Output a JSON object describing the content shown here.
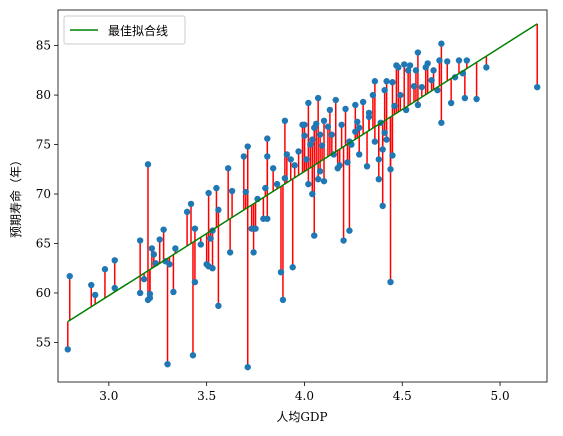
{
  "chart_data": {
    "type": "scatter",
    "xlabel": "人均GDP",
    "ylabel": "预期寿命（年）",
    "xlim": [
      2.74,
      5.24
    ],
    "ylim": [
      51.0,
      88.6
    ],
    "xticks": [
      "3.0",
      "3.5",
      "4.0",
      "4.5",
      "5.0"
    ],
    "xtick_values": [
      3.0,
      3.5,
      4.0,
      4.5,
      5.0
    ],
    "yticks": [
      "55",
      "60",
      "65",
      "70",
      "75",
      "80",
      "85"
    ],
    "ytick_values": [
      55,
      60,
      65,
      70,
      75,
      80,
      85
    ],
    "grid": false,
    "legend": {
      "position": "top-left",
      "entries": [
        "最佳拟合线"
      ]
    },
    "colors": {
      "points": "#1f77b4",
      "residuals": "#ff0000",
      "fit_line": "#008000"
    },
    "fit_line": {
      "x": [
        2.79,
        5.19
      ],
      "y": [
        57.1,
        87.2
      ]
    },
    "points": [
      [
        2.79,
        54.3
      ],
      [
        2.8,
        61.7
      ],
      [
        2.91,
        60.8
      ],
      [
        2.93,
        59.8
      ],
      [
        2.98,
        62.4
      ],
      [
        3.03,
        60.5
      ],
      [
        3.03,
        63.3
      ],
      [
        3.16,
        65.3
      ],
      [
        3.16,
        60.0
      ],
      [
        3.18,
        61.4
      ],
      [
        3.2,
        73.0
      ],
      [
        3.2,
        59.3
      ],
      [
        3.21,
        59.5
      ],
      [
        3.21,
        59.9
      ],
      [
        3.22,
        64.5
      ],
      [
        3.23,
        63.9
      ],
      [
        3.24,
        63.0
      ],
      [
        3.26,
        65.4
      ],
      [
        3.28,
        66.4
      ],
      [
        3.29,
        63.2
      ],
      [
        3.3,
        52.8
      ],
      [
        3.31,
        62.9
      ],
      [
        3.33,
        60.1
      ],
      [
        3.34,
        64.5
      ],
      [
        3.4,
        68.2
      ],
      [
        3.42,
        69.0
      ],
      [
        3.43,
        53.7
      ],
      [
        3.44,
        66.5
      ],
      [
        3.44,
        61.1
      ],
      [
        3.47,
        64.9
      ],
      [
        3.5,
        62.9
      ],
      [
        3.51,
        70.1
      ],
      [
        3.51,
        62.7
      ],
      [
        3.52,
        65.5
      ],
      [
        3.53,
        66.3
      ],
      [
        3.53,
        62.5
      ],
      [
        3.55,
        70.6
      ],
      [
        3.56,
        58.7
      ],
      [
        3.56,
        68.4
      ],
      [
        3.61,
        72.6
      ],
      [
        3.62,
        64.1
      ],
      [
        3.63,
        70.3
      ],
      [
        3.69,
        73.8
      ],
      [
        3.7,
        70.2
      ],
      [
        3.71,
        74.8
      ],
      [
        3.71,
        52.5
      ],
      [
        3.73,
        66.5
      ],
      [
        3.74,
        64.1
      ],
      [
        3.75,
        66.5
      ],
      [
        3.76,
        69.5
      ],
      [
        3.79,
        67.5
      ],
      [
        3.8,
        70.6
      ],
      [
        3.81,
        67.5
      ],
      [
        3.81,
        75.6
      ],
      [
        3.81,
        73.8
      ],
      [
        3.84,
        72.6
      ],
      [
        3.86,
        71.0
      ],
      [
        3.88,
        62.1
      ],
      [
        3.89,
        59.3
      ],
      [
        3.9,
        71.6
      ],
      [
        3.9,
        77.4
      ],
      [
        3.91,
        74.0
      ],
      [
        3.93,
        73.5
      ],
      [
        3.94,
        62.6
      ],
      [
        3.95,
        72.9
      ],
      [
        3.97,
        74.3
      ],
      [
        3.99,
        77.0
      ],
      [
        4.0,
        77.0
      ],
      [
        4.0,
        75.9
      ],
      [
        4.01,
        73.5
      ],
      [
        4.02,
        79.2
      ],
      [
        4.02,
        71.0
      ],
      [
        4.03,
        75.0
      ],
      [
        4.04,
        70.0
      ],
      [
        4.04,
        75.5
      ],
      [
        4.05,
        65.8
      ],
      [
        4.05,
        76.7
      ],
      [
        4.06,
        77.1
      ],
      [
        4.07,
        79.7
      ],
      [
        4.07,
        71.5
      ],
      [
        4.08,
        76.0
      ],
      [
        4.08,
        72.3
      ],
      [
        4.09,
        74.9
      ],
      [
        4.1,
        71.3
      ],
      [
        4.1,
        77.4
      ],
      [
        4.12,
        76.8
      ],
      [
        4.13,
        78.5
      ],
      [
        4.14,
        76.0
      ],
      [
        4.15,
        74.0
      ],
      [
        4.16,
        79.5
      ],
      [
        4.17,
        72.6
      ],
      [
        4.18,
        72.9
      ],
      [
        4.19,
        77.0
      ],
      [
        4.2,
        65.3
      ],
      [
        4.21,
        78.6
      ],
      [
        4.22,
        73.2
      ],
      [
        4.23,
        66.3
      ],
      [
        4.23,
        75.3
      ],
      [
        4.24,
        75.0
      ],
      [
        4.26,
        76.3
      ],
      [
        4.26,
        79.0
      ],
      [
        4.27,
        77.3
      ],
      [
        4.28,
        76.7
      ],
      [
        4.28,
        74.0
      ],
      [
        4.3,
        79.3
      ],
      [
        4.32,
        72.8
      ],
      [
        4.33,
        77.8
      ],
      [
        4.33,
        78.2
      ],
      [
        4.35,
        80.0
      ],
      [
        4.36,
        75.3
      ],
      [
        4.36,
        81.4
      ],
      [
        4.38,
        73.5
      ],
      [
        4.38,
        71.5
      ],
      [
        4.39,
        77.2
      ],
      [
        4.4,
        74.5
      ],
      [
        4.4,
        68.8
      ],
      [
        4.41,
        80.5
      ],
      [
        4.41,
        76.2
      ],
      [
        4.42,
        75.5
      ],
      [
        4.42,
        81.4
      ],
      [
        4.44,
        72.5
      ],
      [
        4.44,
        61.1
      ],
      [
        4.45,
        73.9
      ],
      [
        4.45,
        81.3
      ],
      [
        4.46,
        78.9
      ],
      [
        4.47,
        83.0
      ],
      [
        4.48,
        82.8
      ],
      [
        4.49,
        80.0
      ],
      [
        4.51,
        83.1
      ],
      [
        4.52,
        78.5
      ],
      [
        4.53,
        82.5
      ],
      [
        4.54,
        83.0
      ],
      [
        4.56,
        80.9
      ],
      [
        4.57,
        82.5
      ],
      [
        4.58,
        84.3
      ],
      [
        4.58,
        79.0
      ],
      [
        4.6,
        80.8
      ],
      [
        4.62,
        82.8
      ],
      [
        4.63,
        83.2
      ],
      [
        4.65,
        81.5
      ],
      [
        4.66,
        82.5
      ],
      [
        4.68,
        80.5
      ],
      [
        4.69,
        83.5
      ],
      [
        4.7,
        85.2
      ],
      [
        4.7,
        77.2
      ],
      [
        4.73,
        83.4
      ],
      [
        4.75,
        79.2
      ],
      [
        4.77,
        81.8
      ],
      [
        4.79,
        83.5
      ],
      [
        4.81,
        82.2
      ],
      [
        4.82,
        79.7
      ],
      [
        4.83,
        83.5
      ],
      [
        4.88,
        79.6
      ],
      [
        4.93,
        82.8
      ],
      [
        5.19,
        80.8
      ]
    ]
  }
}
